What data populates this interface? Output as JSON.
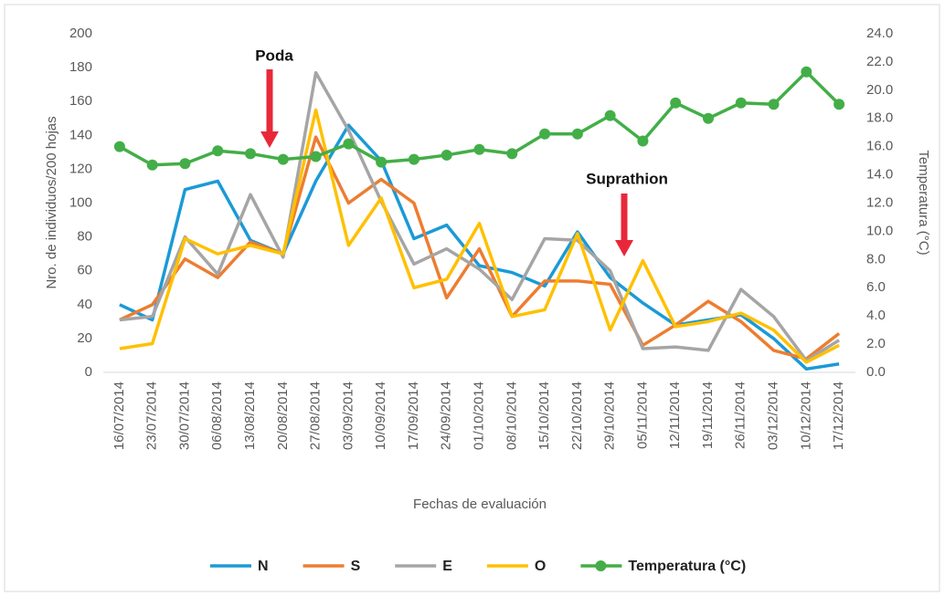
{
  "chart_data": {
    "type": "line",
    "annotations": [
      "Poda",
      "Suprathion"
    ],
    "xlabel": "Fechas de evaluación",
    "ylabel": "Nro. de individuos/200 hojas",
    "y2label": "Temperatura (°C)",
    "categories": [
      "16/07/2014",
      "23/07/2014",
      "30/07/2014",
      "06/08/2014",
      "13/08/2014",
      "20/08/2014",
      "27/08/2014",
      "03/09/2014",
      "10/09/2014",
      "17/09/2014",
      "24/09/2014",
      "01/10/2014",
      "08/10/2014",
      "15/10/2014",
      "22/10/2014",
      "29/10/2014",
      "05/11/2014",
      "12/11/2014",
      "19/11/2014",
      "26/11/2014",
      "03/12/2014",
      "10/12/2014",
      "17/12/2014"
    ],
    "series": [
      {
        "name": "N",
        "color": "#1b9ad6",
        "values": [
          40,
          31,
          108,
          113,
          78,
          70,
          113,
          146,
          125,
          79,
          87,
          63,
          59,
          51,
          83,
          56,
          41,
          28,
          31,
          34,
          20,
          2,
          5
        ]
      },
      {
        "name": "S",
        "color": "#ed7d31",
        "values": [
          31,
          40,
          67,
          56,
          77,
          70,
          139,
          100,
          114,
          100,
          44,
          73,
          33,
          54,
          54,
          52,
          16,
          28,
          42,
          30,
          13,
          8,
          23
        ]
      },
      {
        "name": "E",
        "color": "#a5a5a5",
        "values": [
          31,
          33,
          80,
          58,
          105,
          68,
          177,
          143,
          101,
          64,
          73,
          61,
          43,
          79,
          78,
          60,
          14,
          15,
          13,
          49,
          33,
          7,
          19
        ]
      },
      {
        "name": "O",
        "color": "#ffc000",
        "values": [
          14,
          17,
          79,
          70,
          75,
          70,
          155,
          75,
          103,
          50,
          55,
          88,
          33,
          37,
          82,
          25,
          66,
          27,
          30,
          35,
          25,
          6,
          16
        ]
      },
      {
        "name": "Temperatura (°C)",
        "color": "#43ae47",
        "axis": "y2",
        "marker": true,
        "values": [
          16.0,
          14.7,
          14.8,
          15.7,
          15.5,
          15.1,
          15.3,
          16.2,
          14.9,
          15.1,
          15.4,
          15.8,
          15.5,
          16.9,
          16.9,
          18.2,
          16.4,
          19.1,
          18.0,
          19.1,
          19.0,
          21.3,
          19.0
        ]
      }
    ],
    "ylim": [
      0,
      200
    ],
    "yticks": [
      0,
      20,
      40,
      60,
      80,
      100,
      120,
      140,
      160,
      180,
      200
    ],
    "y2lim": [
      0,
      24
    ],
    "y2ticks": [
      {
        "value": 0,
        "label": "0.0"
      },
      {
        "value": 2,
        "label": "2.0"
      },
      {
        "value": 4,
        "label": "4.0"
      },
      {
        "value": 6,
        "label": "6.0"
      },
      {
        "value": 8,
        "label": "8.0"
      },
      {
        "value": 10,
        "label": "10.0"
      },
      {
        "value": 12,
        "label": "12.0"
      },
      {
        "value": 14,
        "label": "14.0"
      },
      {
        "value": 16,
        "label": "16.0"
      },
      {
        "value": 18,
        "label": "18.0"
      },
      {
        "value": 20,
        "label": "20.0"
      },
      {
        "value": 22,
        "label": "22.0"
      },
      {
        "value": 24,
        "label": "24.0"
      }
    ],
    "grid": false,
    "legend": "bottom"
  }
}
